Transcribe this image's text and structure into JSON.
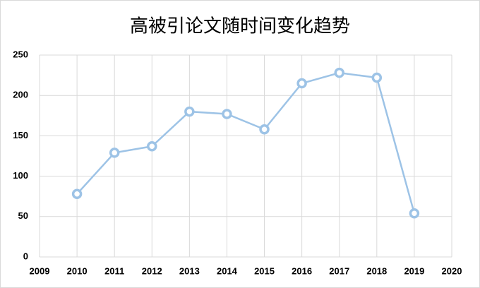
{
  "chart_data": {
    "type": "line",
    "title": "高被引论文随时间变化趋势",
    "x": [
      2010,
      2011,
      2012,
      2013,
      2014,
      2015,
      2016,
      2017,
      2018,
      2019
    ],
    "values": [
      78,
      129,
      137,
      180,
      177,
      158,
      215,
      228,
      222,
      54
    ],
    "color": "#9dc3e6",
    "xlim": [
      2009,
      2020
    ],
    "xticks": [
      2009,
      2010,
      2011,
      2012,
      2013,
      2014,
      2015,
      2016,
      2017,
      2018,
      2019,
      2020
    ],
    "ylim": [
      0,
      250
    ],
    "yticks": [
      0,
      50,
      100,
      150,
      200,
      250
    ],
    "grid": true
  }
}
